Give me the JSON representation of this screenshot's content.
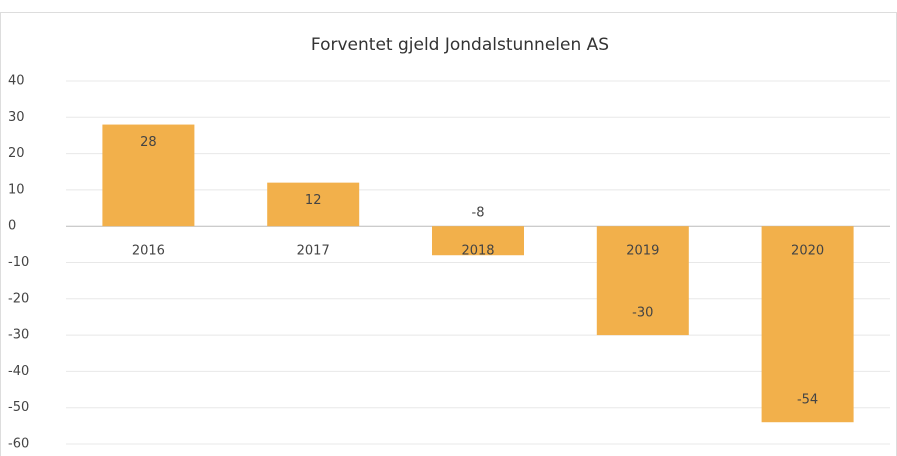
{
  "chart_data": {
    "type": "bar",
    "title": "Forventet gjeld Jondalstunnelen AS",
    "categories": [
      "2016",
      "2017",
      "2018",
      "2019",
      "2020"
    ],
    "values": [
      28,
      12,
      -8,
      -30,
      -54
    ],
    "color": "#f2b04b",
    "ylim": [
      -60,
      40
    ],
    "yticks": [
      -60,
      -50,
      -40,
      -30,
      -20,
      -10,
      0,
      10,
      20,
      30,
      40
    ],
    "grid": true
  }
}
